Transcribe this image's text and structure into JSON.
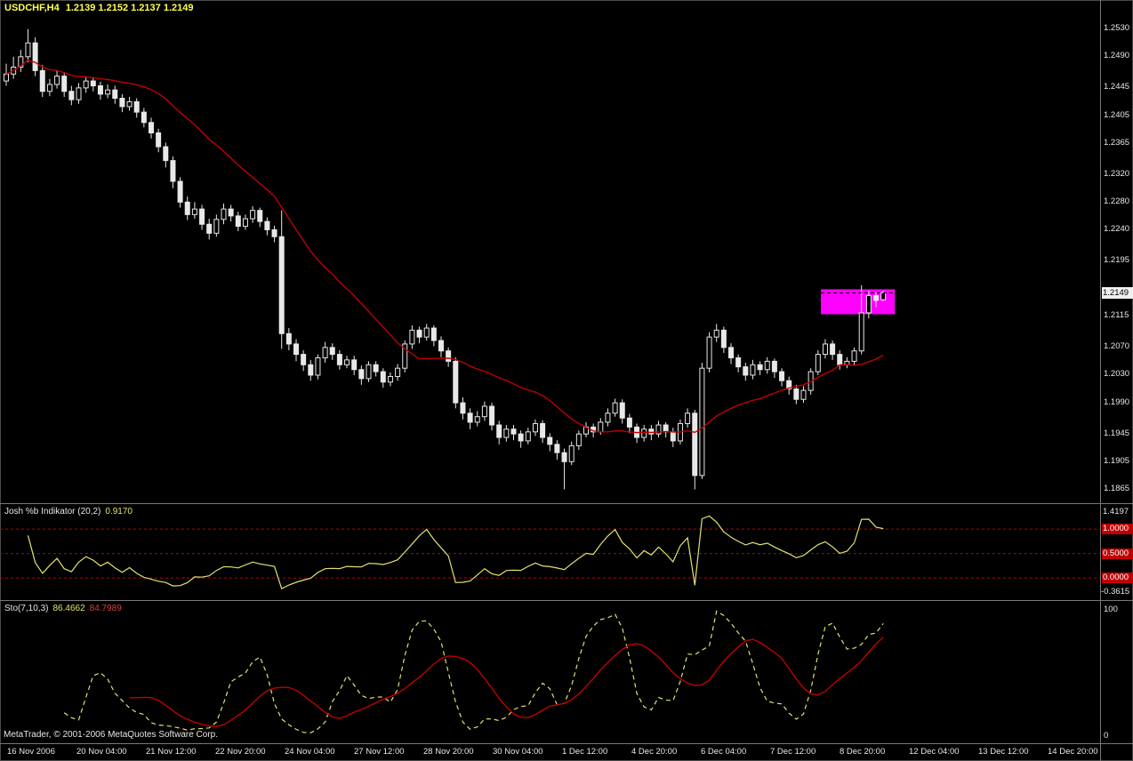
{
  "window": {
    "title_symbol": "USDCHF,H4",
    "title_ohlc": "1.2139 1.2152 1.2137 1.2149"
  },
  "footer": {
    "copyright": "MetaTrader, © 2001-2006 MetaQuotes Software Corp."
  },
  "colors": {
    "background": "#000000",
    "frame": "#4a4a4a",
    "separator": "#787878",
    "candle": "#e8e8e8",
    "candle_bull_fill": "#000000",
    "ma_line": "#c00000",
    "annotation_box": "#ff00ff",
    "percent_b_line": "#e2e270",
    "level_line": "#bb0000",
    "level_label_bg": "#c00000",
    "sto_main_line": "#e2e270",
    "sto_signal_line": "#c00000",
    "title_text": "#ffff4d",
    "axis_text": "#e8e8e8",
    "price_tag_bg": "#f0f0f0",
    "price_tag_text": "#000000"
  },
  "time_axis": {
    "labels": [
      "16 Nov 2006",
      "20 Nov 04:00",
      "21 Nov 12:00",
      "22 Nov 20:00",
      "24 Nov 04:00",
      "27 Nov 12:00",
      "28 Nov 20:00",
      "30 Nov 04:00",
      "1 Dec 12:00",
      "4 Dec 20:00",
      "6 Dec 04:00",
      "7 Dec 12:00",
      "8 Dec 20:00",
      "12 Dec 04:00",
      "13 Dec 12:00",
      "14 Dec 20:00"
    ]
  },
  "chart_data": [
    {
      "type": "candlestick",
      "symbol": "USDCHF",
      "timeframe": "H4",
      "current_price": "1.2149",
      "ohlc_display": {
        "open": "1.2139",
        "high": "1.2152",
        "low": "1.2137",
        "close": "1.2149"
      },
      "ylim": [
        1.1845,
        1.2572
      ],
      "yticks": [
        "1.2530",
        "1.2490",
        "1.2445",
        "1.2405",
        "1.2365",
        "1.2320",
        "1.2280",
        "1.2240",
        "1.2195",
        "1.2115",
        "1.2070",
        "1.2030",
        "1.1990",
        "1.1945",
        "1.1905",
        "1.1865"
      ],
      "ma_period": 20,
      "annotation_box": {
        "start_bar": 112.4,
        "end_bar": 122.6,
        "top": 1.2154,
        "bottom": 1.2118,
        "dashed_line_price": 1.2149
      },
      "ohlc": [
        [
          1.2455,
          1.248,
          1.2448,
          1.2465
        ],
        [
          1.2465,
          1.249,
          1.2458,
          1.2475
        ],
        [
          1.2475,
          1.25,
          1.2468,
          1.249
        ],
        [
          1.249,
          1.253,
          1.2482,
          1.251
        ],
        [
          1.251,
          1.2518,
          1.2462,
          1.247
        ],
        [
          1.247,
          1.2478,
          1.2432,
          1.244
        ],
        [
          1.244,
          1.2458,
          1.2433,
          1.245
        ],
        [
          1.245,
          1.247,
          1.2444,
          1.2462
        ],
        [
          1.2462,
          1.2468,
          1.2432,
          1.244
        ],
        [
          1.244,
          1.2448,
          1.242,
          1.2428
        ],
        [
          1.2428,
          1.2452,
          1.2422,
          1.2445
        ],
        [
          1.2445,
          1.2462,
          1.2438,
          1.2455
        ],
        [
          1.2455,
          1.246,
          1.244,
          1.2448
        ],
        [
          1.2448,
          1.2454,
          1.2428,
          1.2436
        ],
        [
          1.2436,
          1.245,
          1.243,
          1.2442
        ],
        [
          1.2442,
          1.2448,
          1.2422,
          1.243
        ],
        [
          1.243,
          1.2436,
          1.241,
          1.2418
        ],
        [
          1.2418,
          1.2432,
          1.2412,
          1.2425
        ],
        [
          1.2425,
          1.243,
          1.2402,
          1.241
        ],
        [
          1.241,
          1.2416,
          1.2388,
          1.2395
        ],
        [
          1.2395,
          1.2402,
          1.2372,
          1.238
        ],
        [
          1.238,
          1.2386,
          1.2352,
          1.236
        ],
        [
          1.236,
          1.2366,
          1.233,
          1.234
        ],
        [
          1.234,
          1.2346,
          1.23,
          1.231
        ],
        [
          1.231,
          1.2316,
          1.2272,
          1.228
        ],
        [
          1.228,
          1.2288,
          1.2254,
          1.2262
        ],
        [
          1.2262,
          1.228,
          1.2256,
          1.227
        ],
        [
          1.227,
          1.2276,
          1.224,
          1.2248
        ],
        [
          1.2248,
          1.2256,
          1.2226,
          1.2235
        ],
        [
          1.2235,
          1.2262,
          1.223,
          1.2255
        ],
        [
          1.2255,
          1.2278,
          1.2248,
          1.227
        ],
        [
          1.227,
          1.2276,
          1.2252,
          1.226
        ],
        [
          1.226,
          1.2266,
          1.2238,
          1.2245
        ],
        [
          1.2245,
          1.2262,
          1.224,
          1.2256
        ],
        [
          1.2256,
          1.2274,
          1.225,
          1.2268
        ],
        [
          1.2268,
          1.2272,
          1.2244,
          1.2252
        ],
        [
          1.2252,
          1.2258,
          1.2232,
          1.224
        ],
        [
          1.224,
          1.2246,
          1.2222,
          1.223
        ],
        [
          1.223,
          1.2268,
          1.2068,
          1.209
        ],
        [
          1.209,
          1.2098,
          1.2066,
          1.2075
        ],
        [
          1.2075,
          1.2082,
          1.205,
          1.206
        ],
        [
          1.206,
          1.2066,
          1.2036,
          1.2045
        ],
        [
          1.2045,
          1.2052,
          1.2022,
          1.203
        ],
        [
          1.203,
          1.206,
          1.2024,
          1.2055
        ],
        [
          1.2055,
          1.2078,
          1.2048,
          1.207
        ],
        [
          1.207,
          1.2076,
          1.2052,
          1.206
        ],
        [
          1.206,
          1.2066,
          1.2038,
          1.2045
        ],
        [
          1.2045,
          1.2058,
          1.204,
          1.2052
        ],
        [
          1.2052,
          1.2058,
          1.203,
          1.2038
        ],
        [
          1.2038,
          1.2044,
          1.2016,
          1.2025
        ],
        [
          1.2025,
          1.205,
          1.202,
          1.2045
        ],
        [
          1.2045,
          1.205,
          1.2028,
          1.2035
        ],
        [
          1.2035,
          1.204,
          1.2012,
          1.202
        ],
        [
          1.202,
          1.2034,
          1.2014,
          1.2028
        ],
        [
          1.2028,
          1.2046,
          1.2022,
          1.204
        ],
        [
          1.204,
          1.208,
          1.2034,
          1.2075
        ],
        [
          1.2075,
          1.2102,
          1.2068,
          1.2095
        ],
        [
          1.2095,
          1.21,
          1.2076,
          1.2085
        ],
        [
          1.2085,
          1.2104,
          1.208,
          1.2098
        ],
        [
          1.2098,
          1.2102,
          1.2072,
          1.208
        ],
        [
          1.208,
          1.2086,
          1.2056,
          1.2065
        ],
        [
          1.2065,
          1.207,
          1.2042,
          1.205
        ],
        [
          1.205,
          1.2056,
          1.1982,
          1.199
        ],
        [
          1.199,
          1.1998,
          1.1966,
          1.1975
        ],
        [
          1.1975,
          1.1982,
          1.1952,
          1.1962
        ],
        [
          1.1962,
          1.1978,
          1.1956,
          1.197
        ],
        [
          1.197,
          1.1992,
          1.1964,
          1.1985
        ],
        [
          1.1985,
          1.199,
          1.195,
          1.1958
        ],
        [
          1.1958,
          1.1964,
          1.193,
          1.194
        ],
        [
          1.194,
          1.1958,
          1.1934,
          1.1952
        ],
        [
          1.1952,
          1.1958,
          1.1936,
          1.1945
        ],
        [
          1.1945,
          1.195,
          1.1925,
          1.1935
        ],
        [
          1.1935,
          1.1954,
          1.193,
          1.1948
        ],
        [
          1.1948,
          1.1966,
          1.1942,
          1.196
        ],
        [
          1.196,
          1.1965,
          1.1932,
          1.194
        ],
        [
          1.194,
          1.1946,
          1.192,
          1.193
        ],
        [
          1.193,
          1.1936,
          1.1908,
          1.1918
        ],
        [
          1.1918,
          1.1924,
          1.1865,
          1.1905
        ],
        [
          1.1905,
          1.1934,
          1.19,
          1.1928
        ],
        [
          1.1928,
          1.195,
          1.1922,
          1.1945
        ],
        [
          1.1945,
          1.1962,
          1.194,
          1.1955
        ],
        [
          1.1955,
          1.196,
          1.194,
          1.1948
        ],
        [
          1.1948,
          1.1968,
          1.1944,
          1.1962
        ],
        [
          1.1962,
          1.1982,
          1.1956,
          1.1975
        ],
        [
          1.1975,
          1.1996,
          1.197,
          1.199
        ],
        [
          1.199,
          1.1995,
          1.196,
          1.1968
        ],
        [
          1.1968,
          1.1974,
          1.1946,
          1.1955
        ],
        [
          1.1955,
          1.196,
          1.1932,
          1.194
        ],
        [
          1.194,
          1.1958,
          1.1934,
          1.1952
        ],
        [
          1.1952,
          1.1958,
          1.1936,
          1.1945
        ],
        [
          1.1945,
          1.1964,
          1.194,
          1.1958
        ],
        [
          1.1958,
          1.1962,
          1.194,
          1.1948
        ],
        [
          1.1948,
          1.1954,
          1.1926,
          1.1935
        ],
        [
          1.1935,
          1.1966,
          1.193,
          1.196
        ],
        [
          1.196,
          1.1982,
          1.1954,
          1.1975
        ],
        [
          1.1975,
          1.198,
          1.1865,
          1.1885
        ],
        [
          1.1885,
          1.2048,
          1.188,
          1.204
        ],
        [
          1.204,
          1.2092,
          1.2034,
          1.2085
        ],
        [
          1.2085,
          1.2104,
          1.2078,
          1.2095
        ],
        [
          1.2095,
          1.21,
          1.2062,
          1.207
        ],
        [
          1.207,
          1.2076,
          1.2046,
          1.2055
        ],
        [
          1.2055,
          1.206,
          1.2034,
          1.2042
        ],
        [
          1.2042,
          1.2048,
          1.2022,
          1.203
        ],
        [
          1.203,
          1.2052,
          1.2024,
          1.2045
        ],
        [
          1.2045,
          1.205,
          1.203,
          1.2038
        ],
        [
          1.2038,
          1.2056,
          1.2032,
          1.205
        ],
        [
          1.205,
          1.2054,
          1.2026,
          1.2035
        ],
        [
          1.2035,
          1.204,
          1.2014,
          1.2022
        ],
        [
          1.2022,
          1.2028,
          1.2002,
          1.201
        ],
        [
          1.201,
          1.2016,
          1.1988,
          1.1995
        ],
        [
          1.1995,
          1.2014,
          1.199,
          1.2008
        ],
        [
          1.2008,
          1.204,
          1.2002,
          1.2035
        ],
        [
          1.2035,
          1.2066,
          1.203,
          1.206
        ],
        [
          1.206,
          1.2082,
          1.2054,
          1.2075
        ],
        [
          1.2075,
          1.208,
          1.2052,
          1.206
        ],
        [
          1.206,
          1.2066,
          1.2038,
          1.2045
        ],
        [
          1.2045,
          1.2056,
          1.204,
          1.205
        ],
        [
          1.205,
          1.207,
          1.2044,
          1.2065
        ],
        [
          1.2065,
          1.216,
          1.206,
          1.212
        ],
        [
          1.212,
          1.2152,
          1.2112,
          1.2145
        ],
        [
          1.2145,
          1.215,
          1.2128,
          1.2138
        ],
        [
          1.2139,
          1.2152,
          1.2137,
          1.2149
        ]
      ]
    },
    {
      "type": "line",
      "name": "Josh %b Indikator (20,2)",
      "current_value": "0.9170",
      "period": 20,
      "deviation": 2,
      "ylim": [
        -0.3615,
        1.4197
      ],
      "ymax_label": "1.4197",
      "ymin_label": "-0.3615",
      "levels": [
        {
          "value": 1.0,
          "label": "1.0000"
        },
        {
          "value": 0.5,
          "label": "0.5000"
        },
        {
          "value": 0.0,
          "label": "0.0000"
        }
      ],
      "series_source": "Bollinger %b (20,2) computed from the candle closes above"
    },
    {
      "type": "line",
      "name": "Sto(7,10,3)",
      "current_values": [
        "86.4662",
        "84.7989"
      ],
      "k_period": 7,
      "d_period": 10,
      "slowing": 3,
      "ylim": [
        0,
        100
      ],
      "ymax_label": "100",
      "ymin_label": "0",
      "series_source": "Stochastic (7,10,3) computed from the candles above"
    }
  ]
}
